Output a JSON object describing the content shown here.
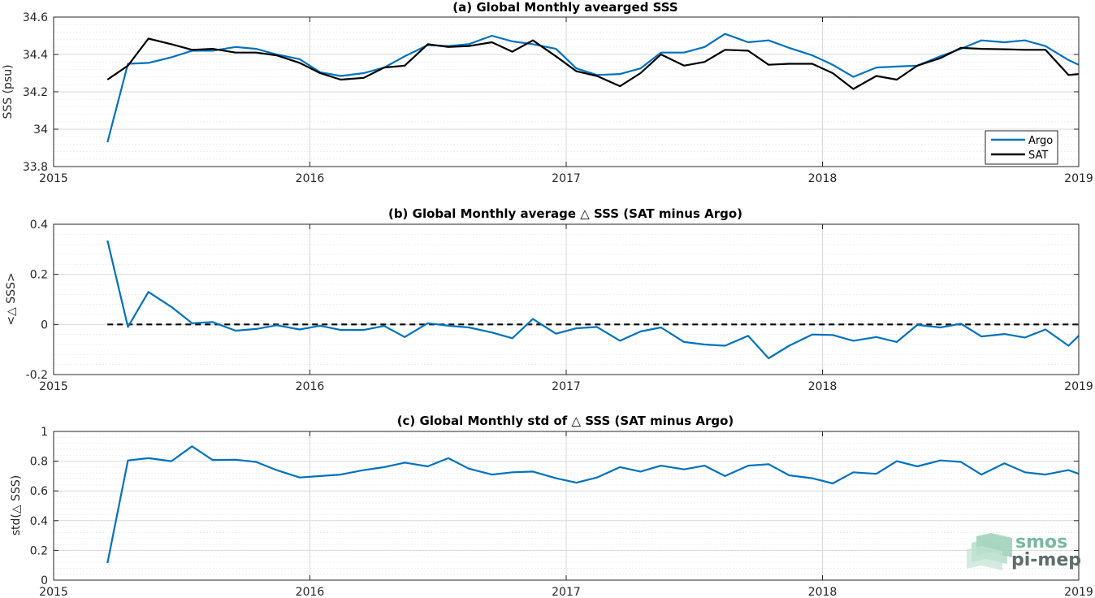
{
  "colors": {
    "argo": "#0072BD",
    "sat": "#000000",
    "grid": "#d9d9d9",
    "logo_green": "#7ab8a0",
    "logo_dark": "#5e6e6a"
  },
  "logo": {
    "line1": "smos",
    "line2": "pi-mep",
    "icon": "wave-stack-icon"
  },
  "chart_data": [
    {
      "type": "line",
      "title": "(a) Global Monthly avearged SSS",
      "xlabel": "",
      "ylabel": "SSS (psu)",
      "xlim": [
        2015.0,
        2019.0
      ],
      "ylim": [
        33.8,
        34.6
      ],
      "xticks": [
        2015,
        2016,
        2017,
        2018,
        2019
      ],
      "xtick_labels": [
        "2015",
        "2016",
        "2017",
        "2018",
        "2019"
      ],
      "yticks": [
        33.8,
        34,
        34.2,
        34.4,
        34.6
      ],
      "ytick_labels": [
        "33.8",
        "34",
        "34.2",
        "34.4",
        "34.6"
      ],
      "grid": true,
      "legend_position": "bottom-right",
      "series": [
        {
          "name": "Argo",
          "x": [
            2015.21,
            2015.29,
            2015.37,
            2015.46,
            2015.54,
            2015.62,
            2015.71,
            2015.79,
            2015.87,
            2015.96,
            2016.04,
            2016.12,
            2016.21,
            2016.29,
            2016.37,
            2016.46,
            2016.54,
            2016.62,
            2016.71,
            2016.79,
            2016.87,
            2016.96,
            2017.04,
            2017.12,
            2017.21,
            2017.29,
            2017.37,
            2017.46,
            2017.54,
            2017.62,
            2017.71,
            2017.79,
            2017.87,
            2017.96,
            2018.04,
            2018.12,
            2018.21,
            2018.29,
            2018.37,
            2018.46,
            2018.54,
            2018.62,
            2018.71,
            2018.79,
            2018.87,
            2018.96,
            2019.0
          ],
          "values": [
            33.93,
            34.35,
            34.355,
            34.385,
            34.42,
            34.42,
            34.44,
            34.43,
            34.4,
            34.375,
            34.305,
            34.285,
            34.3,
            34.33,
            34.39,
            34.45,
            34.445,
            34.455,
            34.5,
            34.47,
            34.455,
            34.43,
            34.325,
            34.29,
            34.295,
            34.325,
            34.41,
            34.41,
            34.44,
            34.51,
            34.465,
            34.475,
            34.435,
            34.395,
            34.345,
            34.28,
            34.33,
            34.335,
            34.34,
            34.39,
            34.43,
            34.475,
            34.465,
            34.475,
            34.445,
            34.37,
            34.345
          ]
        },
        {
          "name": "SAT",
          "x": [
            2015.21,
            2015.29,
            2015.37,
            2015.46,
            2015.54,
            2015.62,
            2015.71,
            2015.79,
            2015.87,
            2015.96,
            2016.04,
            2016.12,
            2016.21,
            2016.29,
            2016.37,
            2016.46,
            2016.54,
            2016.62,
            2016.71,
            2016.79,
            2016.87,
            2016.96,
            2017.04,
            2017.12,
            2017.21,
            2017.29,
            2017.37,
            2017.46,
            2017.54,
            2017.62,
            2017.71,
            2017.79,
            2017.87,
            2017.96,
            2018.04,
            2018.12,
            2018.21,
            2018.29,
            2018.37,
            2018.46,
            2018.54,
            2018.62,
            2018.71,
            2018.79,
            2018.87,
            2018.96,
            2019.0
          ],
          "values": [
            34.265,
            34.34,
            34.485,
            34.455,
            34.425,
            34.43,
            34.41,
            34.41,
            34.395,
            34.355,
            34.3,
            34.265,
            34.275,
            34.33,
            34.34,
            34.455,
            34.44,
            34.445,
            34.465,
            34.415,
            34.475,
            34.39,
            34.31,
            34.285,
            34.23,
            34.3,
            34.4,
            34.34,
            34.36,
            34.425,
            34.42,
            34.345,
            34.35,
            34.35,
            34.3,
            34.215,
            34.285,
            34.265,
            34.34,
            34.38,
            34.435,
            34.43,
            34.428,
            34.425,
            34.425,
            34.29,
            34.295
          ]
        }
      ]
    },
    {
      "type": "line",
      "title": "(b) Global Monthly average △ SSS (SAT minus Argo)",
      "xlabel": "",
      "ylabel": "<△ SSS>",
      "xlim": [
        2015.0,
        2019.0
      ],
      "ylim": [
        -0.2,
        0.4
      ],
      "xticks": [
        2015,
        2016,
        2017,
        2018,
        2019
      ],
      "xtick_labels": [
        "2015",
        "2016",
        "2017",
        "2018",
        "2019"
      ],
      "yticks": [
        -0.2,
        0,
        0.2,
        0.4
      ],
      "ytick_labels": [
        "-0.2",
        "0",
        "0.2",
        "0.4"
      ],
      "grid": true,
      "reference_line": {
        "y": 0,
        "style": "dashed"
      },
      "series": [
        {
          "x": [
            2015.21,
            2015.29,
            2015.37,
            2015.46,
            2015.54,
            2015.62,
            2015.71,
            2015.79,
            2015.87,
            2015.96,
            2016.04,
            2016.12,
            2016.21,
            2016.29,
            2016.37,
            2016.46,
            2016.54,
            2016.62,
            2016.71,
            2016.79,
            2016.87,
            2016.96,
            2017.04,
            2017.12,
            2017.21,
            2017.29,
            2017.37,
            2017.46,
            2017.54,
            2017.62,
            2017.71,
            2017.79,
            2017.87,
            2017.96,
            2018.04,
            2018.12,
            2018.21,
            2018.29,
            2018.37,
            2018.46,
            2018.54,
            2018.62,
            2018.71,
            2018.79,
            2018.87,
            2018.96,
            2019.0
          ],
          "values": [
            0.335,
            -0.01,
            0.13,
            0.07,
            0.005,
            0.01,
            -0.025,
            -0.018,
            -0.003,
            -0.02,
            -0.005,
            -0.022,
            -0.022,
            -0.006,
            -0.05,
            0.005,
            -0.005,
            -0.012,
            -0.032,
            -0.055,
            0.022,
            -0.037,
            -0.015,
            -0.01,
            -0.065,
            -0.028,
            -0.012,
            -0.07,
            -0.08,
            -0.085,
            -0.045,
            -0.135,
            -0.085,
            -0.04,
            -0.042,
            -0.065,
            -0.05,
            -0.07,
            -0.002,
            -0.012,
            0.003,
            -0.048,
            -0.038,
            -0.052,
            -0.02,
            -0.085,
            -0.045
          ]
        }
      ]
    },
    {
      "type": "line",
      "title": "(c) Global Monthly std of △ SSS (SAT minus Argo)",
      "xlabel": "",
      "ylabel": "std(△ SSS)",
      "xlim": [
        2015.0,
        2019.0
      ],
      "ylim": [
        0,
        1
      ],
      "xticks": [
        2015,
        2016,
        2017,
        2018,
        2019
      ],
      "xtick_labels": [
        "2015",
        "2016",
        "2017",
        "2018",
        "2019"
      ],
      "yticks": [
        0,
        0.2,
        0.4,
        0.6,
        0.8,
        1
      ],
      "ytick_labels": [
        "0",
        "0.2",
        "0.4",
        "0.6",
        "0.8",
        "1"
      ],
      "grid": true,
      "series": [
        {
          "x": [
            2015.21,
            2015.29,
            2015.37,
            2015.46,
            2015.54,
            2015.62,
            2015.71,
            2015.79,
            2015.87,
            2015.96,
            2016.04,
            2016.12,
            2016.21,
            2016.29,
            2016.37,
            2016.46,
            2016.54,
            2016.62,
            2016.71,
            2016.79,
            2016.87,
            2016.96,
            2017.04,
            2017.12,
            2017.21,
            2017.29,
            2017.37,
            2017.46,
            2017.54,
            2017.62,
            2017.71,
            2017.79,
            2017.87,
            2017.96,
            2018.04,
            2018.12,
            2018.21,
            2018.29,
            2018.37,
            2018.46,
            2018.54,
            2018.62,
            2018.71,
            2018.79,
            2018.87,
            2018.96,
            2019.0
          ],
          "values": [
            0.115,
            0.805,
            0.82,
            0.8,
            0.9,
            0.808,
            0.81,
            0.795,
            0.74,
            0.69,
            0.7,
            0.71,
            0.74,
            0.76,
            0.79,
            0.765,
            0.82,
            0.75,
            0.71,
            0.725,
            0.73,
            0.685,
            0.655,
            0.69,
            0.76,
            0.73,
            0.77,
            0.745,
            0.77,
            0.7,
            0.77,
            0.78,
            0.705,
            0.685,
            0.65,
            0.725,
            0.715,
            0.8,
            0.765,
            0.805,
            0.795,
            0.71,
            0.785,
            0.725,
            0.71,
            0.74,
            0.715
          ]
        }
      ]
    }
  ]
}
